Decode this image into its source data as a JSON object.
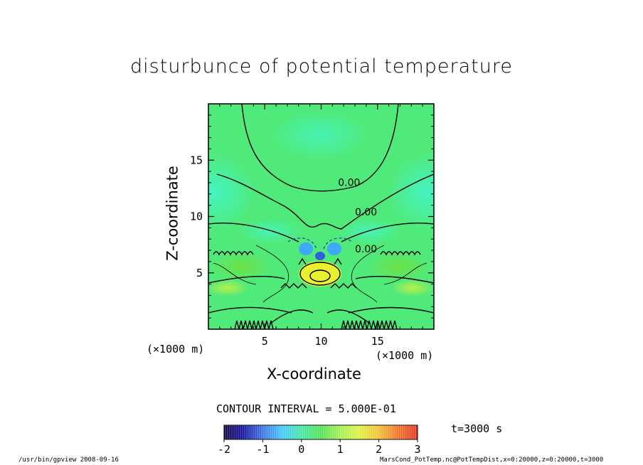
{
  "chart_data": {
    "type": "heatmap",
    "title": "disturbunce of potential temperature",
    "xlabel": "X-coordinate",
    "ylabel": "Z-coordinate",
    "x_unit": "(×1000 m)",
    "x_unit_right": "(×1000 m)",
    "xlim": [
      0,
      20
    ],
    "ylim": [
      0,
      20
    ],
    "x_ticks": [
      5,
      10,
      15
    ],
    "y_ticks": [
      5,
      10,
      15
    ],
    "contour_labels": [
      {
        "text": "0.00",
        "x": 11.5,
        "z": 12.7
      },
      {
        "text": "0.00",
        "x": 13.0,
        "z": 10.1
      },
      {
        "text": "0.00",
        "x": 13.0,
        "z": 6.8
      }
    ],
    "contour_interval": "CONTOUR INTERVAL = 5.000E-01",
    "colorbar": {
      "ticks": [
        "-2",
        "-1",
        "0",
        "1",
        "2",
        "3"
      ],
      "min": -2,
      "max": 3,
      "colors": [
        "#140040",
        "#1010a0",
        "#3a6fe0",
        "#40c8ff",
        "#40e8a0",
        "#50e050",
        "#a0f050",
        "#e0f040",
        "#f0c030",
        "#f07020",
        "#e03020"
      ]
    },
    "time": "t=3000 s"
  },
  "footer": {
    "left": "/usr/bin/gpview  2008-09-16",
    "right": "MarsCond_PotTemp.nc@PotTempDist,x=0:20000,z=0:20000,t=3000"
  }
}
